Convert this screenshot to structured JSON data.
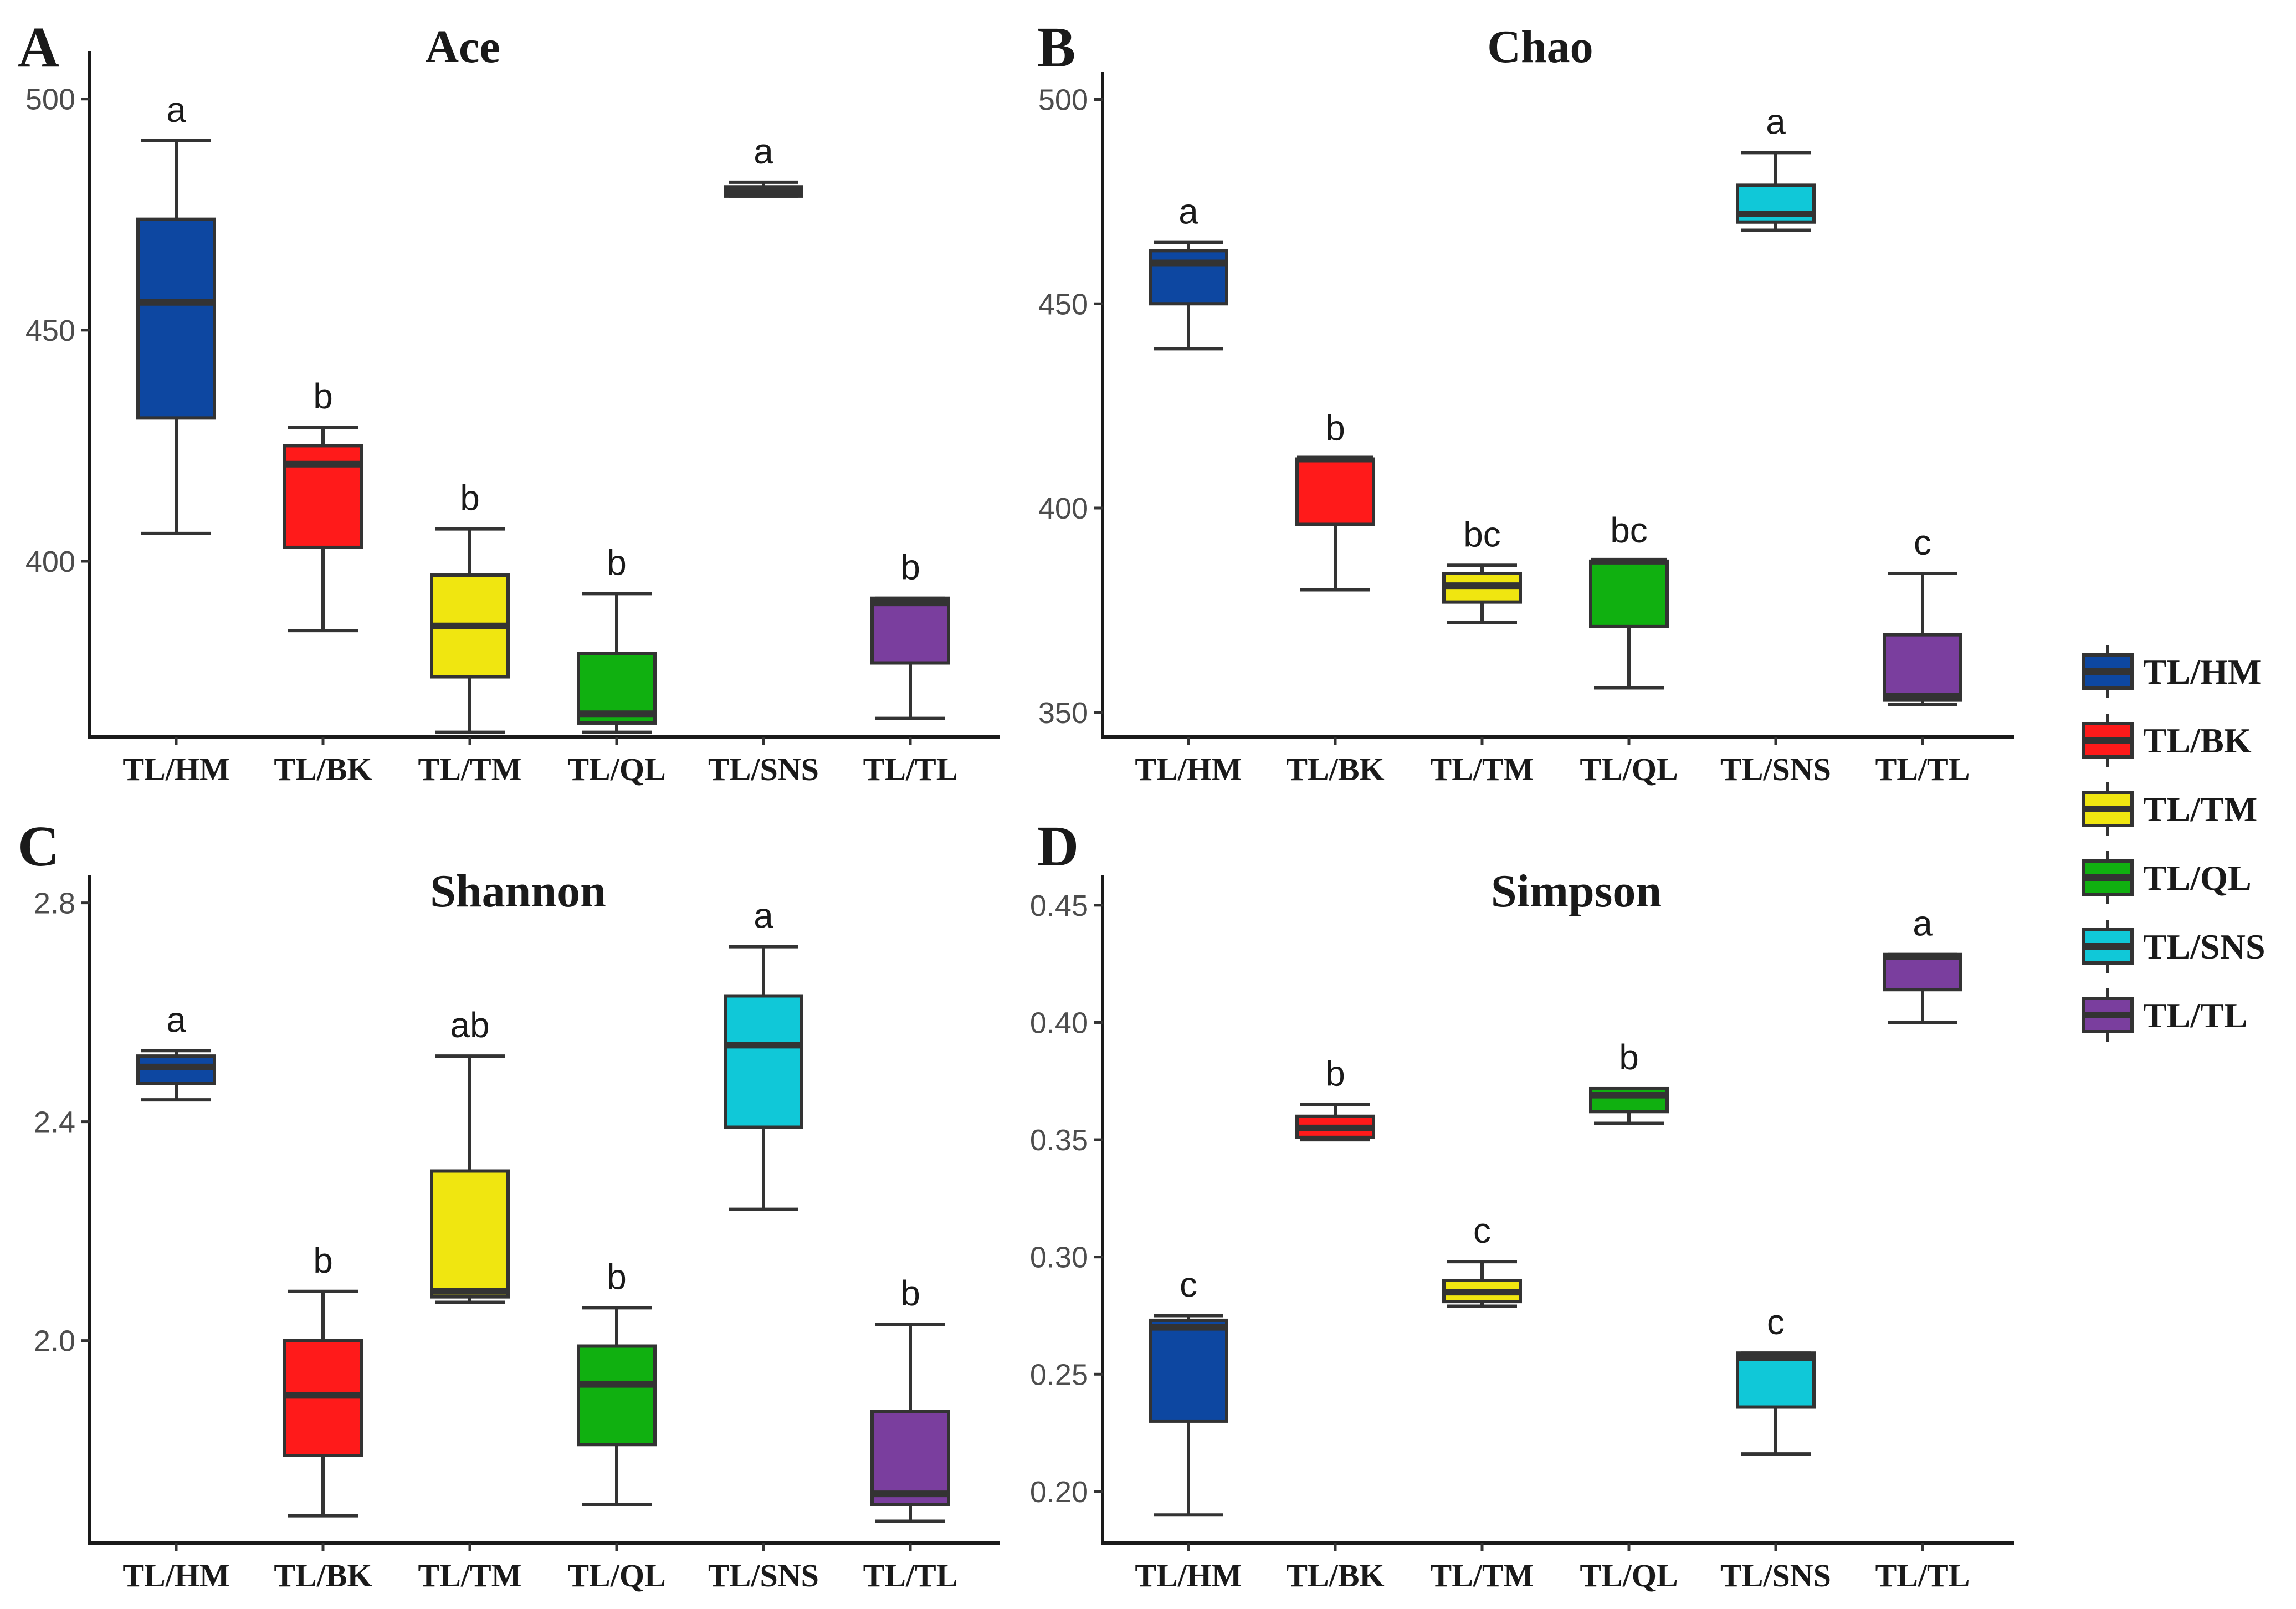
{
  "chart_data": [
    {
      "type": "boxplot",
      "panel": "A",
      "title": "Ace",
      "ylim": [
        362,
        508
      ],
      "yticks": [
        400,
        450,
        500
      ],
      "categories": [
        "TL/HM",
        "TL/BK",
        "TL/TM",
        "TL/QL",
        "TL/SNS",
        "TL/TL"
      ],
      "boxes": [
        {
          "min": 406,
          "q1": 431,
          "median": 456,
          "q3": 474,
          "max": 491,
          "sig": "a"
        },
        {
          "min": 385,
          "q1": 403,
          "median": 421,
          "q3": 425,
          "max": 429,
          "sig": "b"
        },
        {
          "min": 363,
          "q1": 375,
          "median": 386,
          "q3": 397,
          "max": 407,
          "sig": "b"
        },
        {
          "min": 363,
          "q1": 365,
          "median": 367,
          "q3": 380,
          "max": 393,
          "sig": "b"
        },
        {
          "min": 479,
          "q1": 479,
          "median": 480,
          "q3": 481,
          "max": 482,
          "sig": "a"
        },
        {
          "min": 366,
          "q1": 378,
          "median": 391,
          "q3": 392,
          "max": 392,
          "sig": "b"
        }
      ]
    },
    {
      "type": "boxplot",
      "panel": "B",
      "title": "Chao",
      "ylim": [
        344,
        504
      ],
      "yticks": [
        350,
        400,
        450,
        500
      ],
      "categories": [
        "TL/HM",
        "TL/BK",
        "TL/TM",
        "TL/QL",
        "TL/SNS",
        "TL/TL"
      ],
      "boxes": [
        {
          "min": 439,
          "q1": 450,
          "median": 460,
          "q3": 463,
          "max": 465,
          "sig": "a"
        },
        {
          "min": 380,
          "q1": 396,
          "median": 412,
          "q3": 412,
          "max": 412,
          "sig": "b"
        },
        {
          "min": 372,
          "q1": 377,
          "median": 381,
          "q3": 384,
          "max": 386,
          "sig": "bc"
        },
        {
          "min": 356,
          "q1": 371,
          "median": 387,
          "q3": 387,
          "max": 387,
          "sig": "bc"
        },
        {
          "min": 468,
          "q1": 470,
          "median": 472,
          "q3": 479,
          "max": 487,
          "sig": "a"
        },
        {
          "min": 352,
          "q1": 353,
          "median": 354,
          "q3": 369,
          "max": 384,
          "sig": "c"
        }
      ]
    },
    {
      "type": "boxplot",
      "panel": "C",
      "title": "Shannon",
      "ylim": [
        1.63,
        2.83
      ],
      "yticks": [
        2.0,
        2.4,
        2.8
      ],
      "ytick_labels": [
        "2.0",
        "2.4",
        "2.8"
      ],
      "categories": [
        "TL/HM",
        "TL/BK",
        "TL/TM",
        "TL/QL",
        "TL/SNS",
        "TL/TL"
      ],
      "boxes": [
        {
          "min": 2.44,
          "q1": 2.47,
          "median": 2.5,
          "q3": 2.52,
          "max": 2.53,
          "sig": "a"
        },
        {
          "min": 1.68,
          "q1": 1.79,
          "median": 1.9,
          "q3": 2.0,
          "max": 2.09,
          "sig": "b"
        },
        {
          "min": 2.07,
          "q1": 2.08,
          "median": 2.09,
          "q3": 2.31,
          "max": 2.52,
          "sig": "ab"
        },
        {
          "min": 1.7,
          "q1": 1.81,
          "median": 1.92,
          "q3": 1.99,
          "max": 2.06,
          "sig": "b"
        },
        {
          "min": 2.24,
          "q1": 2.39,
          "median": 2.54,
          "q3": 2.63,
          "max": 2.72,
          "sig": "a"
        },
        {
          "min": 1.67,
          "q1": 1.7,
          "median": 1.72,
          "q3": 1.87,
          "max": 2.03,
          "sig": "b"
        }
      ]
    },
    {
      "type": "boxplot",
      "panel": "D",
      "title": "Simpson",
      "ylim": [
        0.178,
        0.458
      ],
      "yticks": [
        0.2,
        0.25,
        0.3,
        0.35,
        0.4,
        0.45
      ],
      "ytick_labels": [
        "0.20",
        "0.25",
        "0.30",
        "0.35",
        "0.40",
        "0.45"
      ],
      "categories": [
        "TL/HM",
        "TL/BK",
        "TL/TM",
        "TL/QL",
        "TL/SNS",
        "TL/TL"
      ],
      "boxes": [
        {
          "min": 0.19,
          "q1": 0.23,
          "median": 0.27,
          "q3": 0.273,
          "max": 0.275,
          "sig": "c"
        },
        {
          "min": 0.35,
          "q1": 0.351,
          "median": 0.355,
          "q3": 0.36,
          "max": 0.365,
          "sig": "b"
        },
        {
          "min": 0.279,
          "q1": 0.281,
          "median": 0.285,
          "q3": 0.29,
          "max": 0.298,
          "sig": "c"
        },
        {
          "min": 0.357,
          "q1": 0.362,
          "median": 0.369,
          "q3": 0.372,
          "max": 0.372,
          "sig": "b"
        },
        {
          "min": 0.216,
          "q1": 0.236,
          "median": 0.257,
          "q3": 0.259,
          "max": 0.259,
          "sig": "c"
        },
        {
          "min": 0.4,
          "q1": 0.414,
          "median": 0.428,
          "q3": 0.429,
          "max": 0.429,
          "sig": "a"
        }
      ]
    }
  ],
  "legend": {
    "items": [
      {
        "label": "TL/HM",
        "color": "#0d47a1"
      },
      {
        "label": "TL/BK",
        "color": "#ff1a1a"
      },
      {
        "label": "TL/TM",
        "color": "#f0e610"
      },
      {
        "label": "TL/QL",
        "color": "#10b010"
      },
      {
        "label": "TL/SNS",
        "color": "#10c8d8"
      },
      {
        "label": "TL/TL",
        "color": "#7a3e9e"
      }
    ]
  },
  "colors": [
    "#0d47a1",
    "#ff1a1a",
    "#f0e610",
    "#10b010",
    "#10c8d8",
    "#7a3e9e"
  ]
}
